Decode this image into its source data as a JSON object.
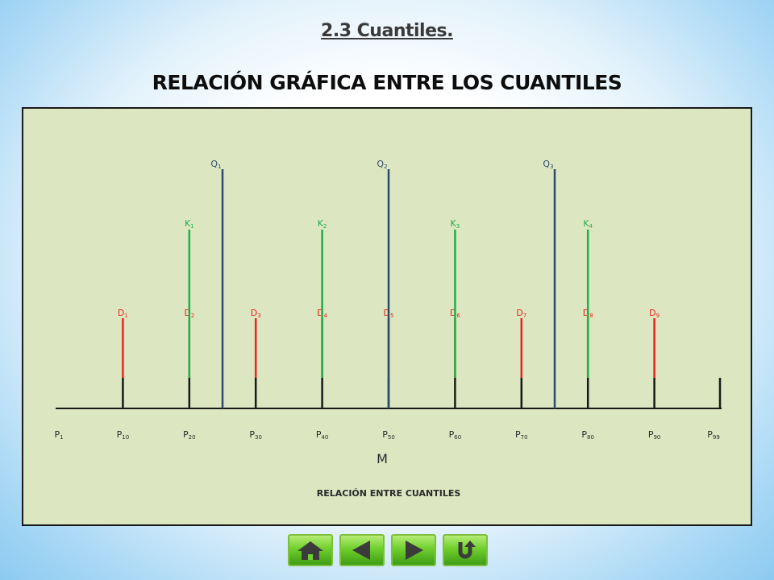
{
  "header": {
    "section_title": "2.3 Cuantiles.",
    "main_title": "RELACIÓN GRÁFICA ENTRE LOS CUANTILES"
  },
  "diagram": {
    "quartiles": {
      "labels": [
        "Q1",
        "Q2",
        "Q3"
      ],
      "positions": [
        25,
        50,
        75
      ],
      "color": "#2c4a6e"
    },
    "quintiles": {
      "labels": [
        "K1",
        "K2",
        "K3",
        "K4"
      ],
      "positions": [
        20,
        40,
        60,
        80
      ],
      "color": "#1fb04a"
    },
    "deciles": {
      "labels": [
        "D1",
        "D2",
        "D3",
        "D4",
        "D5",
        "D6",
        "D7",
        "D8",
        "D9"
      ],
      "positions": [
        10,
        20,
        30,
        40,
        50,
        60,
        70,
        80,
        90
      ],
      "color": "#e8261c"
    },
    "percentiles": {
      "labels": [
        "P1",
        "P10",
        "P20",
        "P30",
        "P40",
        "P50",
        "P60",
        "P70",
        "P80",
        "P90",
        "P99"
      ],
      "positions": [
        1,
        10,
        20,
        30,
        40,
        50,
        60,
        70,
        80,
        90,
        99
      ]
    },
    "median_label": "M",
    "caption": "RELACIÓN ENTRE CUANTILES"
  },
  "nav": [
    {
      "name": "home-button",
      "icon": "home-icon"
    },
    {
      "name": "back-button",
      "icon": "arrow-left-icon"
    },
    {
      "name": "forward-button",
      "icon": "arrow-right-icon"
    },
    {
      "name": "return-button",
      "icon": "return-icon"
    }
  ]
}
